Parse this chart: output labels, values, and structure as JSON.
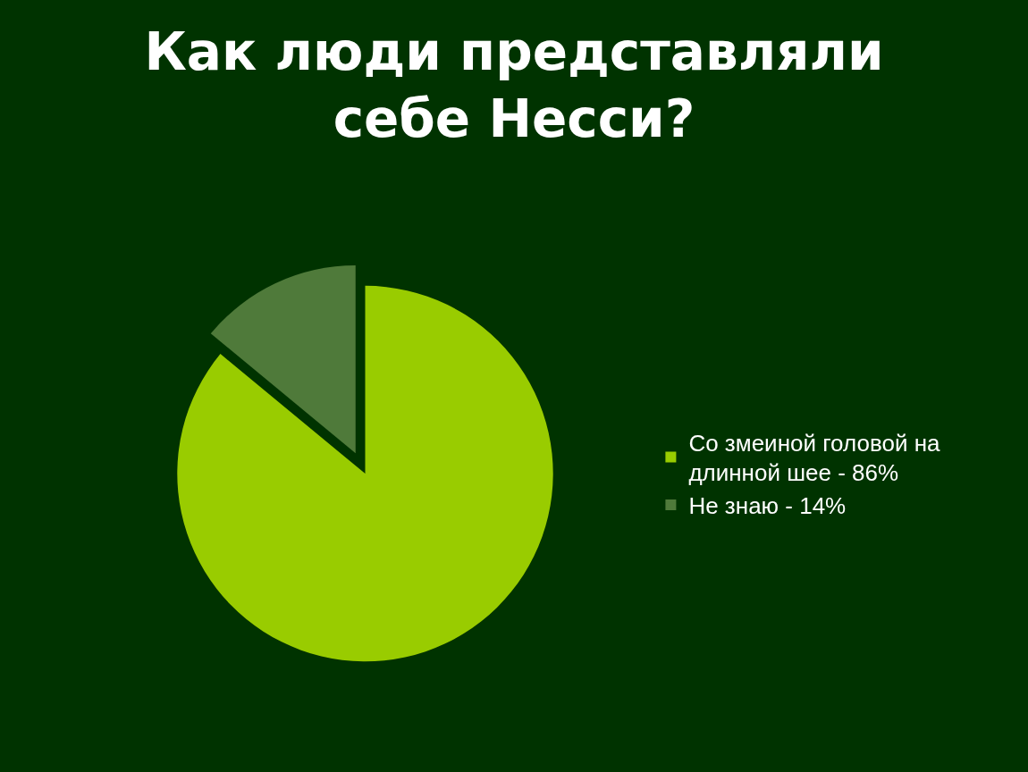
{
  "chart_data": {
    "type": "pie",
    "title": "Как люди представляли себе Несси?",
    "categories": [
      "Со змеиной головой на длинной шее - 86%",
      "Не знаю - 14%"
    ],
    "values": [
      86,
      14
    ],
    "colors": [
      "#99cc00",
      "#4f7a3a"
    ],
    "legend": "right"
  }
}
